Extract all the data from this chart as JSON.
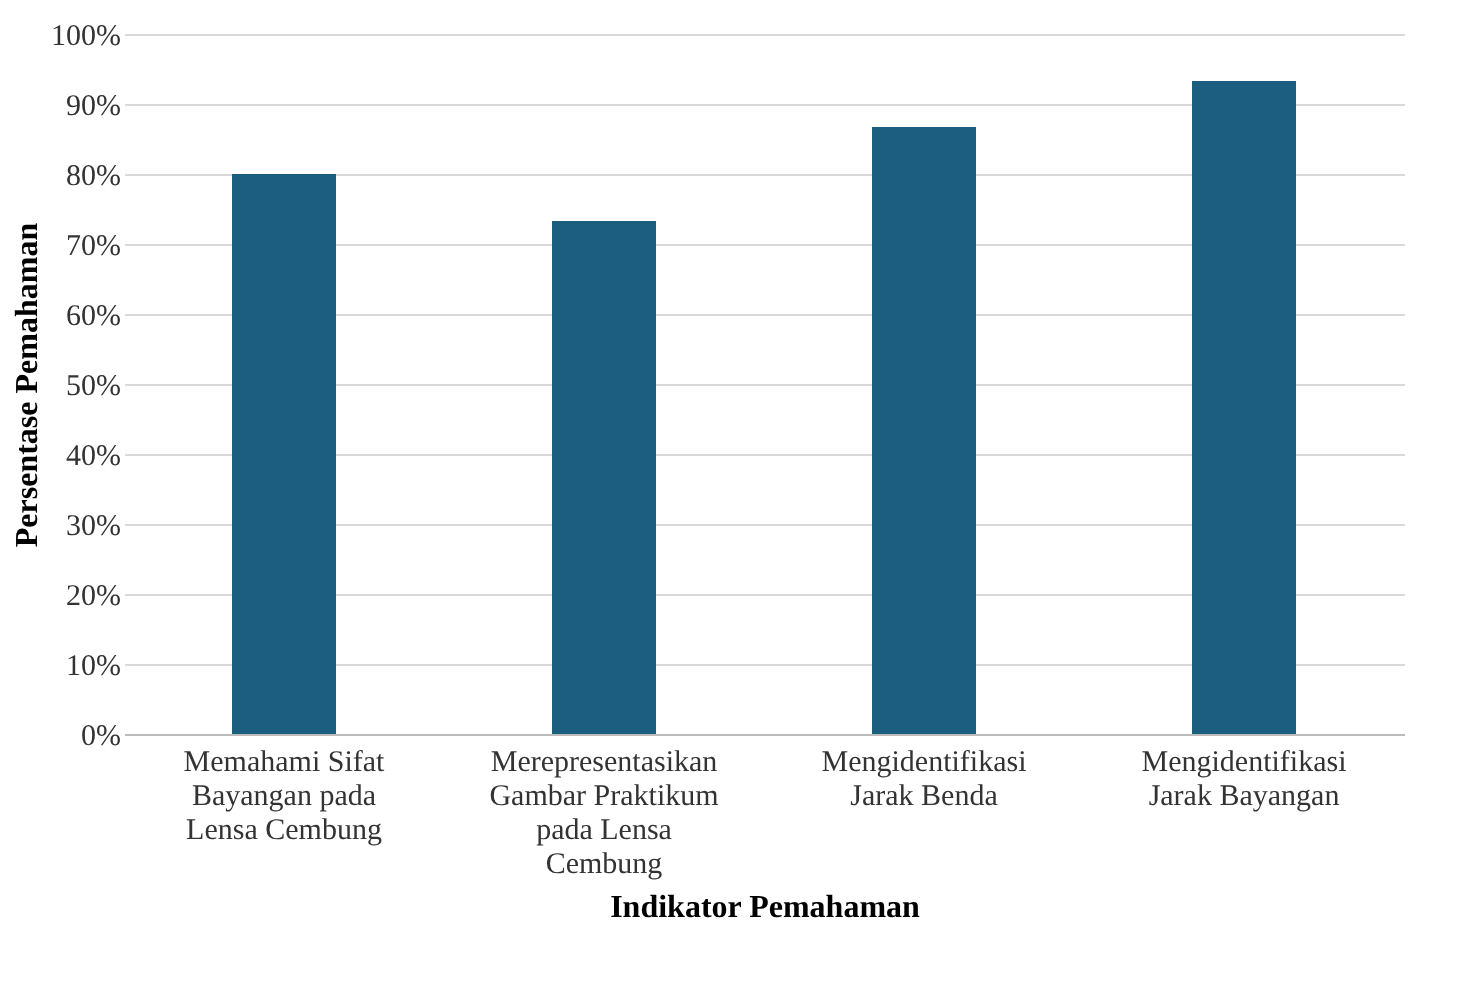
{
  "chart_data": {
    "type": "bar",
    "xlabel": "Indikator Pemahaman",
    "ylabel": "Persentase Pemahaman",
    "categories": [
      "Memahami Sifat Bayangan pada Lensa Cembung",
      "Merepresentasikan Gambar Praktikum pada Lensa Cembung",
      "Mengidentifikasi Jarak Benda",
      "Mengidentifikasi Jarak Bayangan"
    ],
    "values": [
      80,
      73.3,
      86.7,
      93.3
    ],
    "color": "#1b5e80",
    "ylim": [
      0,
      100
    ],
    "yticks": [
      {
        "value": 0,
        "label": "0%"
      },
      {
        "value": 10,
        "label": "10%"
      },
      {
        "value": 20,
        "label": "20%"
      },
      {
        "value": 30,
        "label": "30%"
      },
      {
        "value": 40,
        "label": "40%"
      },
      {
        "value": 50,
        "label": "50%"
      },
      {
        "value": 60,
        "label": "60%"
      },
      {
        "value": 70,
        "label": "70%"
      },
      {
        "value": 80,
        "label": "80%"
      },
      {
        "value": 90,
        "label": "90%"
      },
      {
        "value": 100,
        "label": "100%"
      }
    ],
    "grid": "y"
  }
}
